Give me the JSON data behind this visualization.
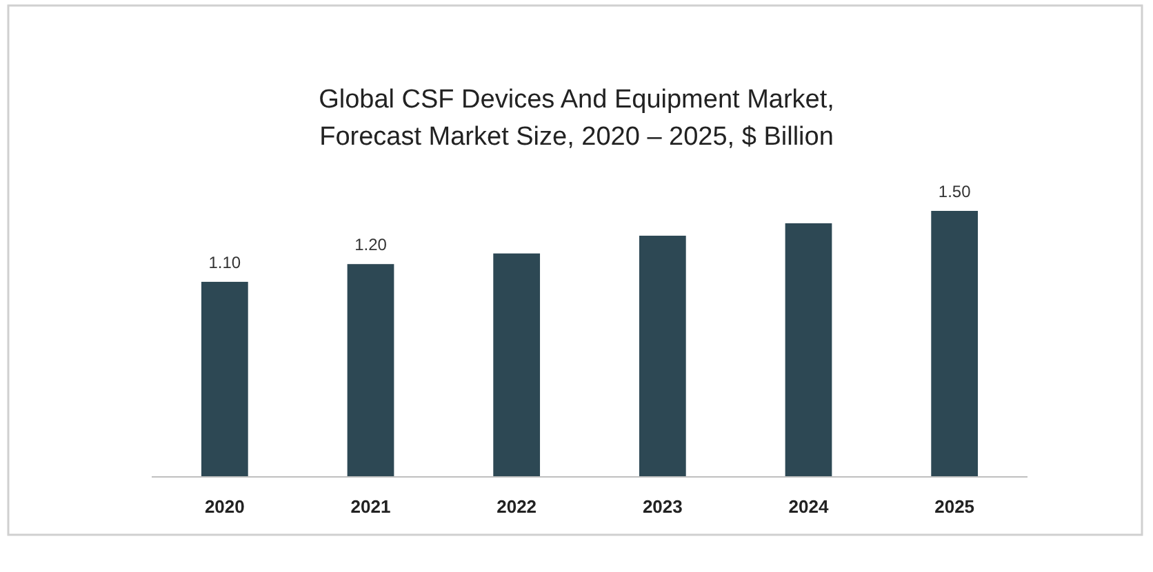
{
  "chart_data": {
    "type": "bar",
    "title": "Global CSF Devices And Equipment Market,\nForecast Market Size, 2020 – 2025, $ Billion",
    "categories": [
      "2020",
      "2021",
      "2022",
      "2023",
      "2024",
      "2025"
    ],
    "values": [
      1.1,
      1.2,
      1.26,
      1.36,
      1.43,
      1.5
    ],
    "value_labels": [
      "1.10",
      "1.20",
      null,
      null,
      null,
      "1.50"
    ],
    "color": "#2d4854"
  }
}
